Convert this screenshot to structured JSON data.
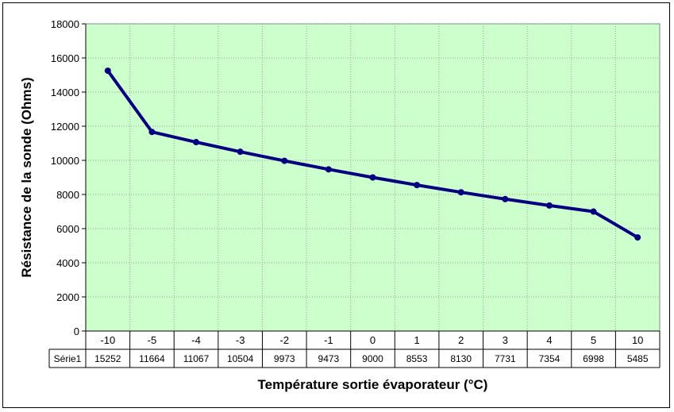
{
  "chart_data": {
    "type": "line",
    "title": "",
    "xlabel": "Température sortie évaporateur (°C)",
    "ylabel": "Résistance de la sonde (Ohms)",
    "categories": [
      "-10",
      "-5",
      "-4",
      "-3",
      "-2",
      "-1",
      "0",
      "1",
      "2",
      "3",
      "4",
      "5",
      "10"
    ],
    "series": [
      {
        "name": "Série1",
        "values": [
          15252,
          11664,
          11067,
          10504,
          9973,
          9473,
          9000,
          8553,
          8130,
          7731,
          7354,
          6998,
          5485
        ]
      }
    ],
    "ylim": [
      0,
      18000
    ],
    "yticks": [
      0,
      2000,
      4000,
      6000,
      8000,
      10000,
      12000,
      14000,
      16000,
      18000
    ],
    "grid": true,
    "data_table": true,
    "colors": {
      "plot_background": "#ccffcc",
      "series_line": "#000080",
      "grid": "#a0a0a0"
    }
  }
}
